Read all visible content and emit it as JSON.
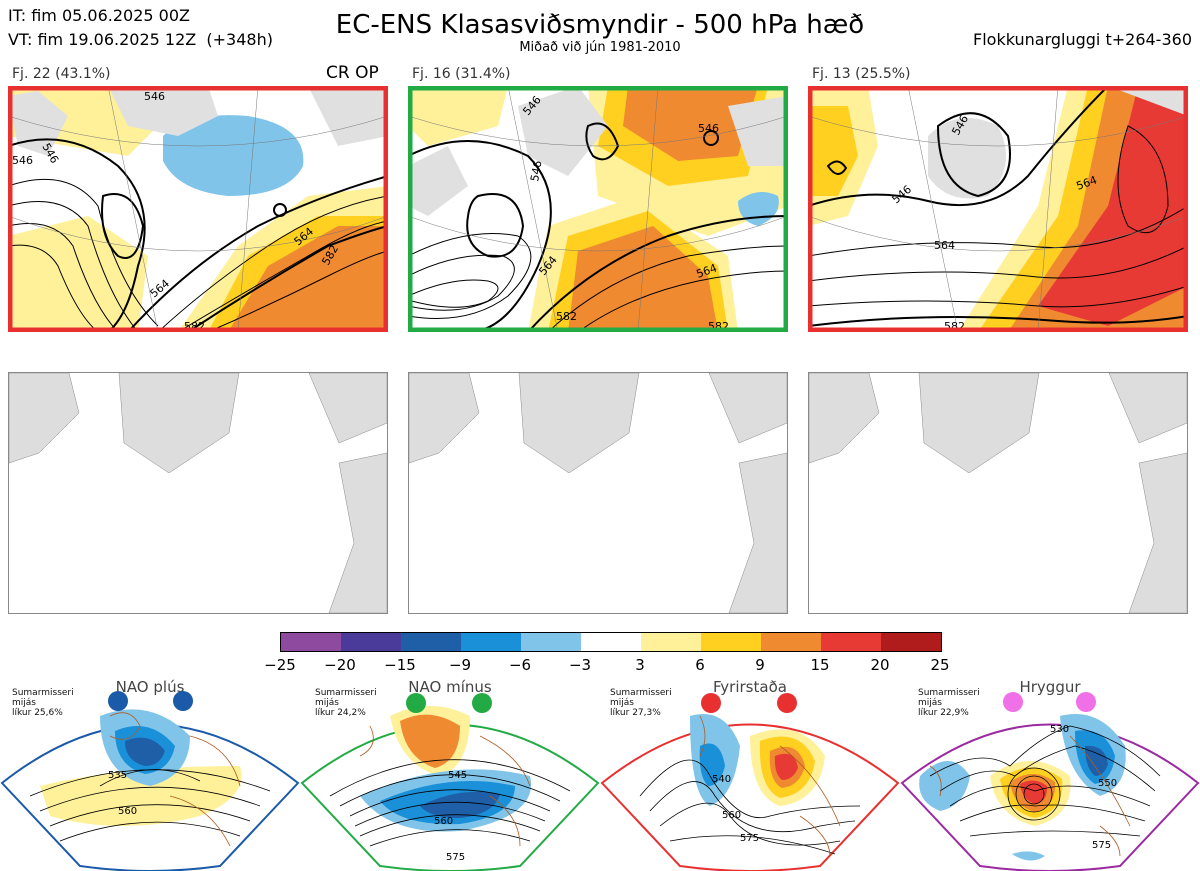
{
  "header": {
    "it": "IT: fim 05.06.2025 00Z",
    "vt": "VT: fim 19.06.2025 12Z  (+348h)",
    "title": "EC-ENS Klasasviðsmyndir - 500 hPa hæð",
    "subtitle": "Miðað við jún 1981-2010",
    "window": "Flokkunargluggi t+264-360"
  },
  "clusters": [
    {
      "label": "Fj. 22 (43.1%)",
      "tag": "CR OP",
      "regime_color": "#e83030",
      "contours": [
        "546",
        "546",
        "546",
        "564",
        "564",
        "582",
        "582"
      ]
    },
    {
      "label": "Fj. 16 (31.4%)",
      "tag": "",
      "regime_color": "#22aa44",
      "contours": [
        "546",
        "546",
        "546",
        "564",
        "564",
        "582",
        "582"
      ]
    },
    {
      "label": "Fj. 13 (25.5%)",
      "tag": "",
      "regime_color": "#e83030",
      "contours": [
        "546",
        "546",
        "564",
        "564",
        "582"
      ]
    }
  ],
  "colorbar": {
    "colors": [
      "#8e4a9e",
      "#4a3a9a",
      "#1f5fa8",
      "#1a90d8",
      "#80c4ea",
      "#ffffff",
      "#fff09a",
      "#ffd020",
      "#f08a30",
      "#e83a34",
      "#b01c1c"
    ],
    "ticks": [
      "−25",
      "−20",
      "−15",
      "−9",
      "−6",
      "−3",
      "3",
      "6",
      "9",
      "15",
      "20",
      "25"
    ]
  },
  "regimes": [
    {
      "name": "NAO plús",
      "color": "#1a5aa8",
      "info": [
        "Sumarmisseri",
        "mijás",
        "líkur 25,6%"
      ],
      "contours": [
        "535",
        "560"
      ]
    },
    {
      "name": "NAO mínus",
      "color": "#22aa44",
      "info": [
        "Sumarmisseri",
        "mijás",
        "líkur 24,2%"
      ],
      "contours": [
        "545",
        "560",
        "575"
      ]
    },
    {
      "name": "Fyrirstaða",
      "color": "#e83030",
      "info": [
        "Sumarmisseri",
        "mijás",
        "líkur 27,3%"
      ],
      "contours": [
        "540",
        "560",
        "575"
      ]
    },
    {
      "name": "Hryggur",
      "color": "#9a2aa0",
      "dot_color": "#f070e8",
      "info": [
        "Sumarmisseri",
        "mijás",
        "líkur 22,9%"
      ],
      "contours": [
        "530",
        "550",
        "575"
      ]
    }
  ]
}
